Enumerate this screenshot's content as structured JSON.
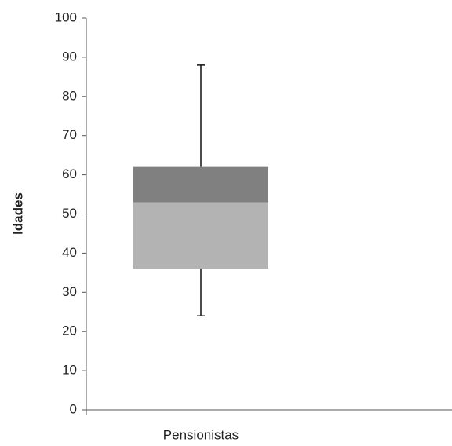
{
  "chart_data": {
    "type": "box",
    "y_label": "Idades",
    "categories": [
      "Pensionistas"
    ],
    "boxes": [
      {
        "min": 24,
        "q1": 36,
        "median": 53,
        "q3": 62,
        "max": 88
      }
    ],
    "lower_color": "#b3b3b3",
    "upper_color": "#808080",
    "ylim": [
      0,
      100
    ],
    "yticks": [
      0,
      10,
      20,
      30,
      40,
      50,
      60,
      70,
      80,
      90,
      100
    ]
  }
}
